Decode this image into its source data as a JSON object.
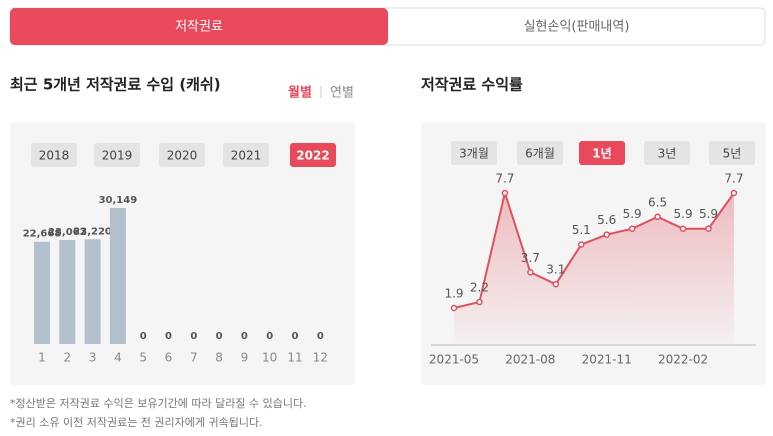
{
  "tabs": {
    "items": [
      "저작권료",
      "실현손익(판매내역)"
    ],
    "active": 0
  },
  "left": {
    "title": "최근 5개년 저작권료 수입 (캐쉬)",
    "toggle": {
      "items": [
        "월별",
        "연별"
      ],
      "active": 0
    },
    "years": {
      "items": [
        "2018",
        "2019",
        "2020",
        "2021",
        "2022"
      ],
      "active": 4
    }
  },
  "right": {
    "title": "저작권료 수익률",
    "periods": {
      "items": [
        "3개월",
        "6개월",
        "1년",
        "3년",
        "5년"
      ],
      "active": 2
    }
  },
  "notes": [
    "*정산받은 저작권료 수익은 보유기간에 따라 달라질 수 있습니다.",
    "*권리 소유 이전 저작권료는 전 권리자에게 귀속됩니다."
  ],
  "chart_data": [
    {
      "type": "bar",
      "categories": [
        "1",
        "2",
        "3",
        "4",
        "5",
        "6",
        "7",
        "8",
        "9",
        "10",
        "11",
        "12"
      ],
      "values": [
        22668,
        23062,
        23220,
        30149,
        0,
        0,
        0,
        0,
        0,
        0,
        0,
        0
      ],
      "value_labels": [
        "22,668",
        "23,062",
        "23,220",
        "30,149",
        "0",
        "0",
        "0",
        "0",
        "0",
        "0",
        "0",
        "0"
      ],
      "color": "#b2bfcd"
    },
    {
      "type": "line",
      "categories": [
        "2021-05",
        null,
        null,
        "2021-08",
        null,
        null,
        "2021-11",
        null,
        null,
        "2022-02",
        null,
        null
      ],
      "values": [
        1.9,
        2.2,
        7.7,
        3.7,
        3.1,
        5.1,
        5.6,
        5.9,
        6.5,
        5.9,
        5.9,
        7.7
      ],
      "color": "#e0505f"
    }
  ]
}
